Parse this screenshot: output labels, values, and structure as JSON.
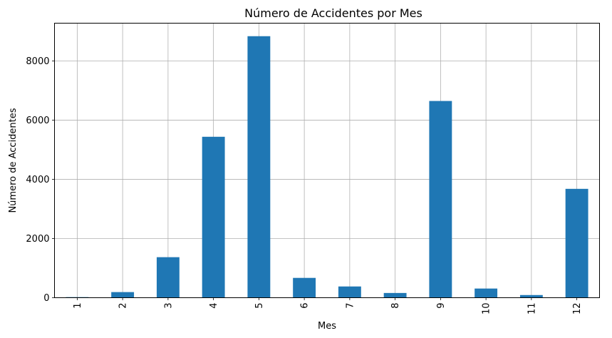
{
  "chart_data": {
    "type": "bar",
    "title": "Número de Accidentes por Mes",
    "xlabel": "Mes",
    "ylabel": "Número de Accidentes",
    "categories": [
      "1",
      "2",
      "3",
      "4",
      "5",
      "6",
      "7",
      "8",
      "9",
      "10",
      "11",
      "12"
    ],
    "values": [
      20,
      190,
      1370,
      5440,
      8840,
      670,
      380,
      160,
      6650,
      310,
      90,
      3680
    ],
    "ylim": [
      0,
      9280
    ],
    "yticks": [
      0,
      2000,
      4000,
      6000,
      8000
    ],
    "ytick_labels": [
      "0",
      "2000",
      "4000",
      "6000",
      "8000"
    ],
    "grid": true,
    "bar_color": "#1f77b4",
    "grid_color": "#b0b0b0"
  }
}
